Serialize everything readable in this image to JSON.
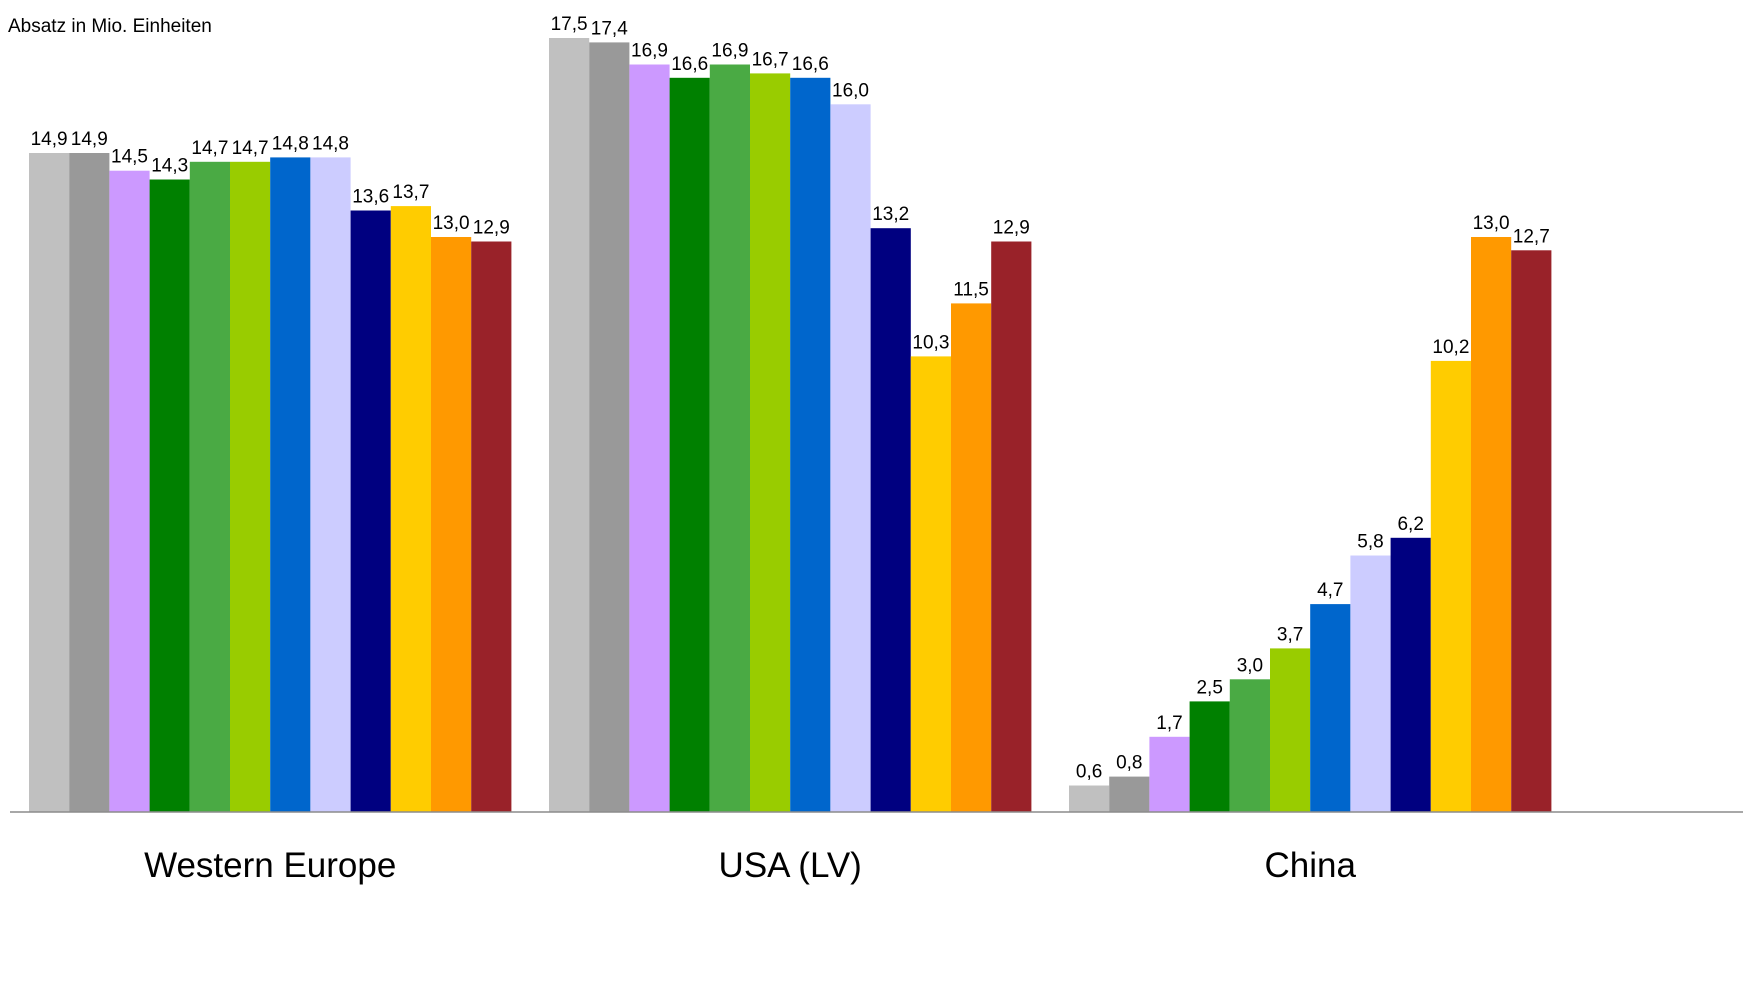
{
  "chart_data": {
    "type": "bar",
    "ylabel": "Absatz in Mio. Einheiten",
    "ylim": [
      0,
      17.5
    ],
    "grid": false,
    "legend": "none",
    "categories": [
      "Western Europe",
      "USA (LV)",
      "China"
    ],
    "bar_colors": [
      "#c0c0c0",
      "#999999",
      "#cc99ff",
      "#008000",
      "#4aaa44",
      "#99cc00",
      "#0066cc",
      "#ccccff",
      "#000080",
      "#ffcc00",
      "#ff9900",
      "#992229"
    ],
    "series": [
      {
        "values": [
          14.9,
          17.5,
          0.6
        ]
      },
      {
        "values": [
          14.9,
          17.4,
          0.8
        ]
      },
      {
        "values": [
          14.5,
          16.9,
          1.7
        ]
      },
      {
        "values": [
          14.3,
          16.6,
          2.5
        ]
      },
      {
        "values": [
          14.7,
          16.9,
          3.0
        ]
      },
      {
        "values": [
          14.7,
          16.7,
          3.7
        ]
      },
      {
        "values": [
          14.8,
          16.6,
          4.7
        ]
      },
      {
        "values": [
          14.8,
          16.0,
          5.8
        ]
      },
      {
        "values": [
          13.6,
          13.2,
          6.2
        ]
      },
      {
        "values": [
          13.7,
          10.3,
          10.2
        ]
      },
      {
        "values": [
          13.0,
          11.5,
          13.0
        ]
      },
      {
        "values": [
          12.9,
          12.9,
          12.7
        ]
      }
    ],
    "data_labels": [
      [
        "14,9",
        "14,9",
        "14,5",
        "14,3",
        "14,7",
        "14,7",
        "14,8",
        "14,8",
        "13,6",
        "13,7",
        "13,0",
        "12,9"
      ],
      [
        "17,5",
        "17,4",
        "16,9",
        "16,6",
        "16,9",
        "16,7",
        "16,6",
        "16,0",
        "13,2",
        "10,3",
        "11,5",
        "12,9"
      ],
      [
        "0,6",
        "0,8",
        "1,7",
        "2,5",
        "3,0",
        "3,7",
        "4,7",
        "5,8",
        "6,2",
        "10,2",
        "13,0",
        "12,7"
      ]
    ]
  }
}
